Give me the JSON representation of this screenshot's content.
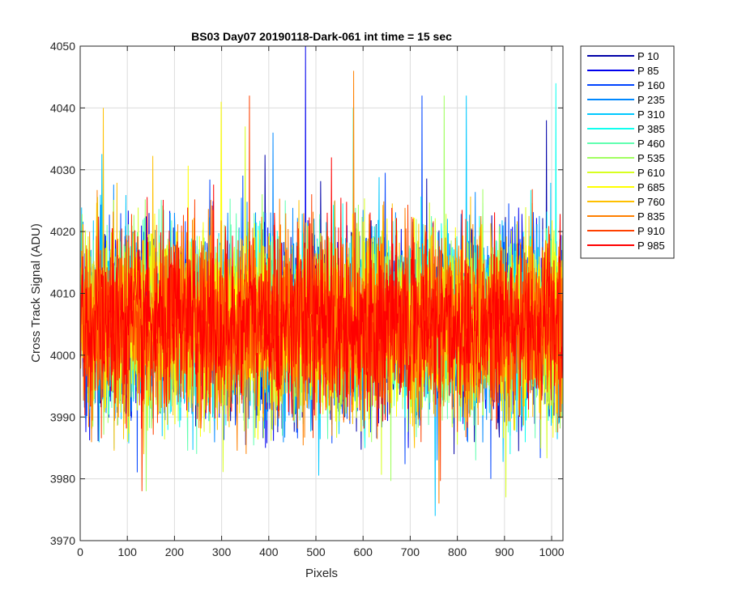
{
  "chart_data": {
    "type": "line",
    "title": "BS03 Day07 20190118-Dark-061 int time = 15 sec",
    "xlabel": "Pixels",
    "ylabel": "Cross Track Signal (ADU)",
    "xlim": [
      0,
      1024
    ],
    "ylim": [
      3970,
      4050
    ],
    "xticks": [
      0,
      100,
      200,
      300,
      400,
      500,
      600,
      700,
      800,
      900,
      1000
    ],
    "yticks": [
      3970,
      3980,
      3990,
      4000,
      4010,
      4020,
      4030,
      4040,
      4050
    ],
    "grid": true,
    "legend_position": "outside-top-right",
    "pixels": 1024,
    "noise_note": "Signal values per pixel fluctuate roughly between 3975 and 4046 ADU around a mean of about 4005 ADU",
    "series": [
      {
        "name": "P 10",
        "color": "#0000a8",
        "mean": 4005,
        "min": 3984,
        "max": 4038
      },
      {
        "name": "P 85",
        "color": "#0000ee",
        "mean": 4005,
        "min": 3985,
        "max": 4050
      },
      {
        "name": "P 160",
        "color": "#0044ff",
        "mean": 4005,
        "min": 3980,
        "max": 4042
      },
      {
        "name": "P 235",
        "color": "#0088ff",
        "mean": 4005,
        "min": 3983,
        "max": 4036
      },
      {
        "name": "P 310",
        "color": "#00c8ff",
        "mean": 4005,
        "min": 3974,
        "max": 4042
      },
      {
        "name": "P 385",
        "color": "#10ffef",
        "mean": 4005,
        "min": 3984,
        "max": 4044
      },
      {
        "name": "P 460",
        "color": "#60ffb0",
        "mean": 4005,
        "min": 3983,
        "max": 4040
      },
      {
        "name": "P 535",
        "color": "#a0ff60",
        "mean": 4005,
        "min": 3978,
        "max": 4042
      },
      {
        "name": "P 610",
        "color": "#d8ff20",
        "mean": 4005,
        "min": 3977,
        "max": 4037
      },
      {
        "name": "P 685",
        "color": "#ffff00",
        "mean": 4005,
        "min": 3986,
        "max": 4041
      },
      {
        "name": "P 760",
        "color": "#ffc000",
        "mean": 4005,
        "min": 3984,
        "max": 4040
      },
      {
        "name": "P 835",
        "color": "#ff8000",
        "mean": 4005,
        "min": 3976,
        "max": 4046
      },
      {
        "name": "P 910",
        "color": "#ff4000",
        "mean": 4005,
        "min": 3978,
        "max": 4042
      },
      {
        "name": "P 985",
        "color": "#ff0000",
        "mean": 4005,
        "min": 3988,
        "max": 4032
      }
    ]
  }
}
